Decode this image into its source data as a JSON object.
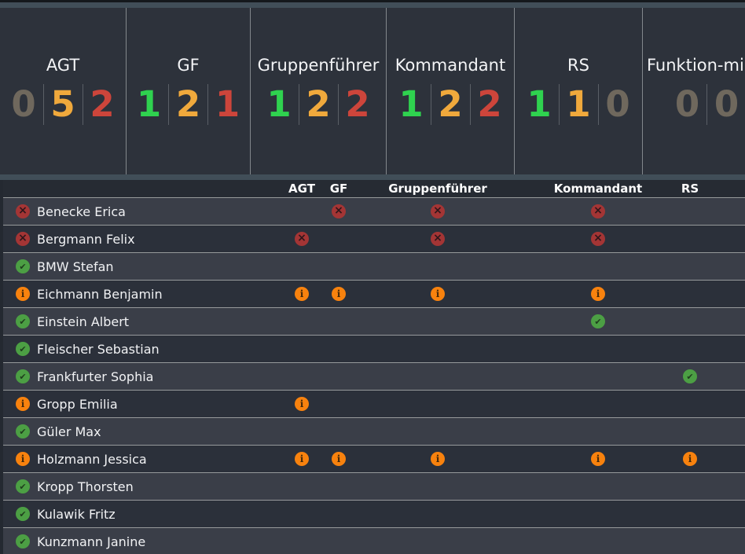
{
  "summary_cards": [
    {
      "id": "agt",
      "title": "AGT",
      "counts": [
        {
          "value": "0",
          "status": "none"
        },
        {
          "value": "5",
          "status": "warn"
        },
        {
          "value": "2",
          "status": "bad"
        }
      ]
    },
    {
      "id": "gf",
      "title": "GF",
      "counts": [
        {
          "value": "1",
          "status": "ok"
        },
        {
          "value": "2",
          "status": "warn"
        },
        {
          "value": "1",
          "status": "bad"
        }
      ]
    },
    {
      "id": "gruppenfuehrer",
      "title": "Gruppenführer",
      "counts": [
        {
          "value": "1",
          "status": "ok"
        },
        {
          "value": "2",
          "status": "warn"
        },
        {
          "value": "2",
          "status": "bad"
        }
      ]
    },
    {
      "id": "kommandant",
      "title": "Kommandant",
      "counts": [
        {
          "value": "1",
          "status": "ok"
        },
        {
          "value": "2",
          "status": "warn"
        },
        {
          "value": "2",
          "status": "bad"
        }
      ]
    },
    {
      "id": "rs",
      "title": "RS",
      "counts": [
        {
          "value": "1",
          "status": "ok"
        },
        {
          "value": "1",
          "status": "warn"
        },
        {
          "value": "0",
          "status": "none"
        }
      ]
    },
    {
      "id": "funktion",
      "title": "Funktion-mi",
      "counts": [
        {
          "value": "0",
          "status": "none"
        },
        {
          "value": "0",
          "status": "none"
        }
      ]
    }
  ],
  "table": {
    "columns": [
      {
        "id": "agt",
        "label": "AGT"
      },
      {
        "id": "gf",
        "label": "GF"
      },
      {
        "id": "gruppenfuehrer",
        "label": "Gruppenführer"
      },
      {
        "id": "kommandant",
        "label": "Kommandant"
      },
      {
        "id": "rs",
        "label": "RS"
      }
    ],
    "rows": [
      {
        "name": "Benecke Erica",
        "status": "error",
        "cells": [
          null,
          "error",
          "error",
          "error",
          null
        ]
      },
      {
        "name": "Bergmann Felix",
        "status": "error",
        "cells": [
          "error",
          null,
          "error",
          "error",
          null
        ]
      },
      {
        "name": "BMW Stefan",
        "status": "ok",
        "cells": [
          null,
          null,
          null,
          null,
          null
        ]
      },
      {
        "name": "Eichmann Benjamin",
        "status": "info",
        "cells": [
          "info",
          "info",
          "info",
          "info",
          null
        ]
      },
      {
        "name": "Einstein Albert",
        "status": "ok",
        "cells": [
          null,
          null,
          null,
          "ok",
          null
        ]
      },
      {
        "name": "Fleischer Sebastian",
        "status": "ok",
        "cells": [
          null,
          null,
          null,
          null,
          null
        ]
      },
      {
        "name": "Frankfurter Sophia",
        "status": "ok",
        "cells": [
          null,
          null,
          null,
          null,
          "ok"
        ]
      },
      {
        "name": "Gropp Emilia",
        "status": "info",
        "cells": [
          "info",
          null,
          null,
          null,
          null
        ]
      },
      {
        "name": "Güler Max",
        "status": "ok",
        "cells": [
          null,
          null,
          null,
          null,
          null
        ]
      },
      {
        "name": "Holzmann Jessica",
        "status": "info",
        "cells": [
          "info",
          "info",
          "info",
          "info",
          "info"
        ]
      },
      {
        "name": "Kropp Thorsten",
        "status": "ok",
        "cells": [
          null,
          null,
          null,
          null,
          null
        ]
      },
      {
        "name": "Kulawik Fritz",
        "status": "ok",
        "cells": [
          null,
          null,
          null,
          null,
          null
        ]
      },
      {
        "name": "Kunzmann Janine",
        "status": "ok",
        "cells": [
          null,
          null,
          null,
          null,
          null
        ]
      }
    ]
  },
  "icons": {
    "error_glyph": "×",
    "ok_glyph": "✔",
    "info_glyph": "i"
  },
  "colors": {
    "count_ok": "#2fd24f",
    "count_warn": "#f0a93c",
    "count_bad": "#cd453b",
    "count_none": "#6f685d",
    "badge_error": "#a43535",
    "badge_ok": "#4c9f44",
    "badge_info": "#f8820e",
    "strip": "#414e58",
    "card_bg": "#2d323b",
    "header_bg": "#262b33",
    "row_light": "#3a3e48",
    "row_dark": "#2b303a",
    "separator": "#96999b"
  }
}
